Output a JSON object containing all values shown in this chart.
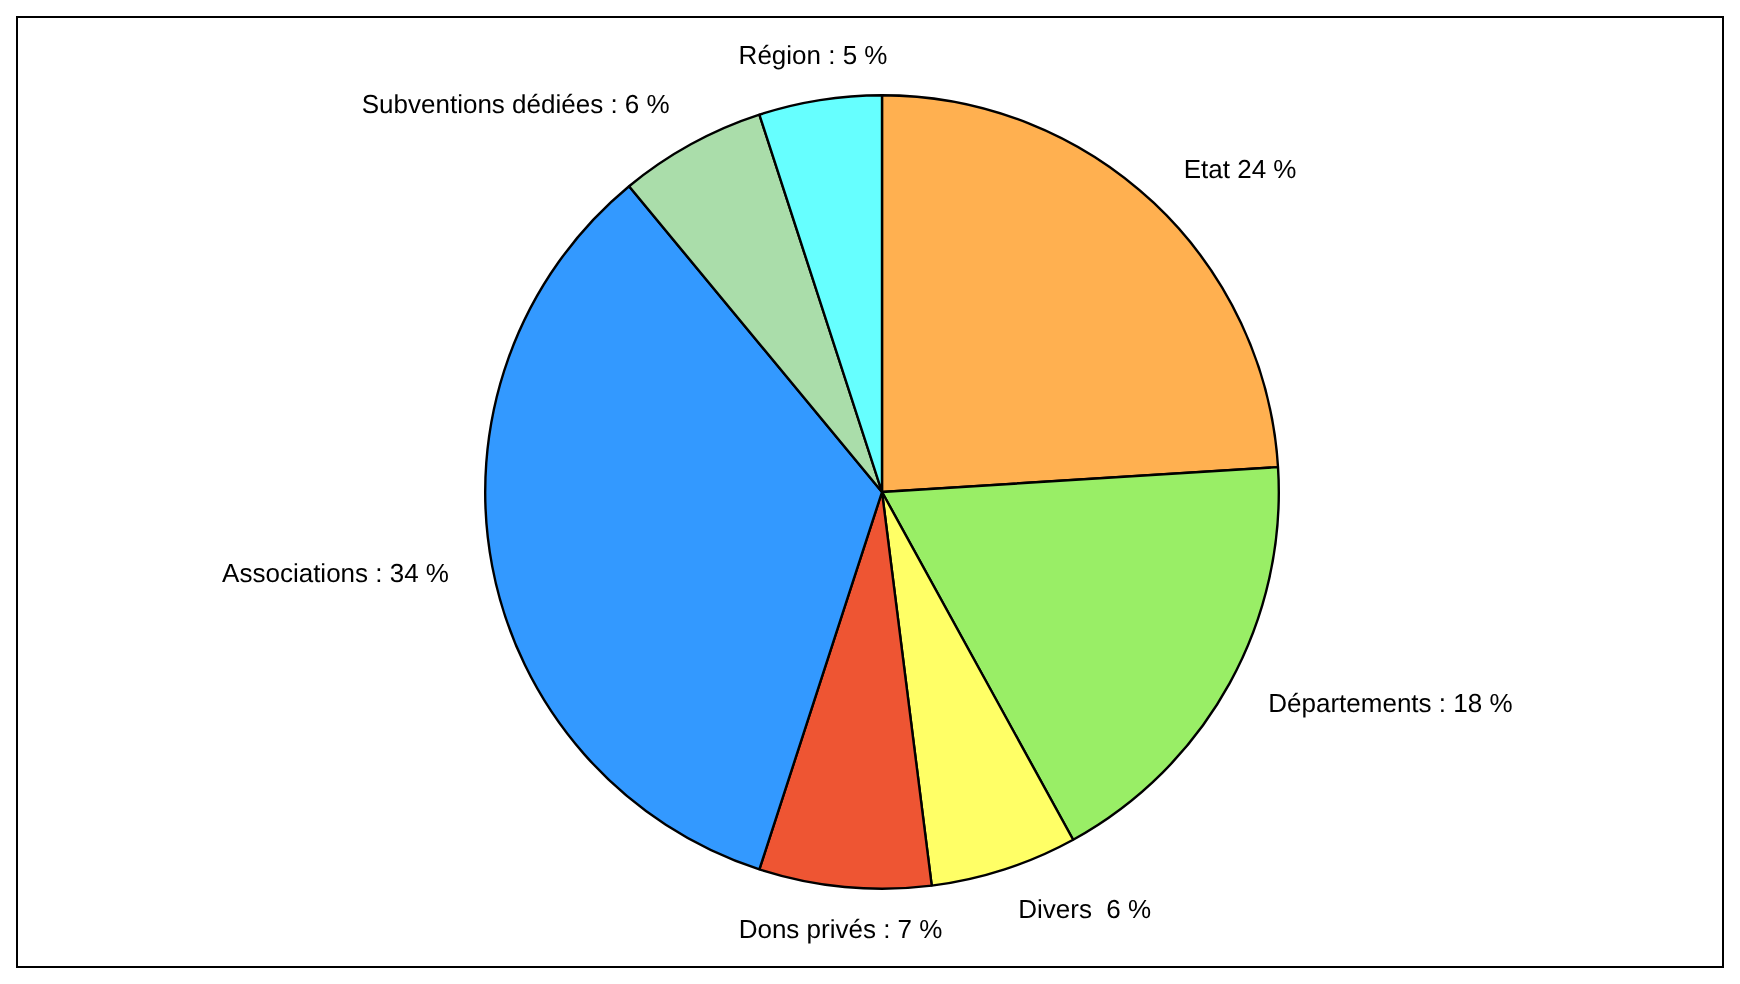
{
  "chart_data": {
    "type": "pie",
    "categories": [
      "Etat 24 %",
      "Départements : 18 %",
      "Divers  6 %",
      "Dons privés : 7 %",
      "Associations : 34 %",
      "Subventions dédiées : 6 %",
      "Région : 5 %"
    ],
    "values": [
      24,
      18,
      6,
      7,
      34,
      6,
      5
    ],
    "colors": [
      "#ffb050",
      "#99ee66",
      "#ffff66",
      "#ee5533",
      "#3399ff",
      "#aaddaa",
      "#66ffff"
    ],
    "legend": false
  }
}
